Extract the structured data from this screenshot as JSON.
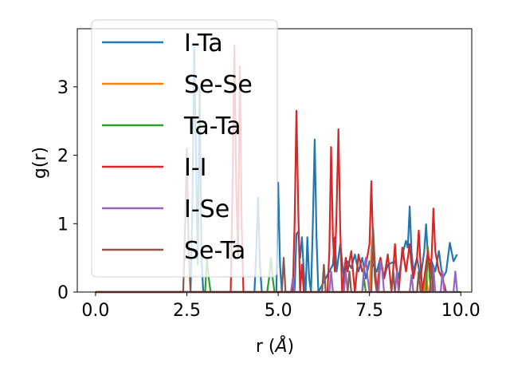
{
  "chart_data": {
    "type": "line",
    "xlabel": "r (",
    "xlabel_unit": "Å",
    "xlabel_close": ")",
    "ylabel": "g(r)",
    "xlim": [
      -0.5,
      10.3
    ],
    "ylim": [
      0,
      3.85
    ],
    "xticks": [
      0.0,
      2.5,
      5.0,
      7.5,
      10.0
    ],
    "xtick_labels": [
      "0.0",
      "2.5",
      "5.0",
      "7.5",
      "10.0"
    ],
    "yticks": [
      0,
      1,
      2,
      3
    ],
    "ytick_labels": [
      "0",
      "1",
      "2",
      "3"
    ],
    "grid": false,
    "legend_position": "top-left",
    "series": [
      {
        "name": "I-Ta",
        "color": "#1f77b4",
        "points": [
          [
            0,
            0
          ],
          [
            2.6,
            0
          ],
          [
            2.65,
            1.2
          ],
          [
            2.7,
            3.6
          ],
          [
            2.75,
            2.0
          ],
          [
            2.8,
            0.4
          ],
          [
            2.85,
            3.0
          ],
          [
            2.9,
            0.5
          ],
          [
            2.95,
            0
          ],
          [
            4.35,
            0
          ],
          [
            4.4,
            0.6
          ],
          [
            4.45,
            1.38
          ],
          [
            4.5,
            0.4
          ],
          [
            4.55,
            0
          ],
          [
            4.95,
            0
          ],
          [
            5.0,
            1.6
          ],
          [
            5.05,
            0.4
          ],
          [
            5.1,
            0
          ],
          [
            5.45,
            0
          ],
          [
            5.5,
            0.85
          ],
          [
            5.55,
            0.88
          ],
          [
            5.6,
            0.5
          ],
          [
            5.65,
            0.8
          ],
          [
            5.7,
            0.3
          ],
          [
            5.75,
            0
          ],
          [
            5.8,
            0.8
          ],
          [
            5.85,
            0.2
          ],
          [
            5.9,
            0
          ],
          [
            5.95,
            1.0
          ],
          [
            6.0,
            2.23
          ],
          [
            6.05,
            0.8
          ],
          [
            6.1,
            0
          ],
          [
            6.5,
            0.4
          ],
          [
            6.55,
            0.8
          ],
          [
            6.6,
            0.3
          ],
          [
            6.7,
            0.7
          ],
          [
            6.8,
            0.2
          ],
          [
            6.9,
            0.45
          ],
          [
            7.0,
            0.35
          ],
          [
            7.1,
            0.55
          ],
          [
            7.2,
            0.3
          ],
          [
            7.3,
            0.5
          ],
          [
            7.4,
            0.2
          ],
          [
            7.5,
            0.45
          ],
          [
            7.6,
            0.4
          ],
          [
            7.7,
            0.3
          ],
          [
            7.8,
            0.5
          ],
          [
            7.9,
            0.2
          ],
          [
            8.0,
            0.4
          ],
          [
            8.2,
            0.45
          ],
          [
            8.3,
            0.2
          ],
          [
            8.4,
            0.55
          ],
          [
            8.5,
            0.75
          ],
          [
            8.55,
            0.65
          ],
          [
            8.6,
            1.25
          ],
          [
            8.65,
            0.6
          ],
          [
            8.7,
            0.3
          ],
          [
            8.8,
            0.5
          ],
          [
            8.9,
            0.2
          ],
          [
            9.0,
            0.6
          ],
          [
            9.05,
            0.99
          ],
          [
            9.1,
            0.5
          ],
          [
            9.2,
            0.45
          ],
          [
            9.3,
            0.3
          ],
          [
            9.4,
            0.6
          ],
          [
            9.5,
            0.2
          ],
          [
            9.6,
            0.3
          ],
          [
            9.7,
            0.72
          ],
          [
            9.8,
            0.45
          ],
          [
            9.9,
            0.55
          ]
        ]
      },
      {
        "name": "Se-Se",
        "color": "#ff7f0e",
        "points": [
          [
            0,
            0
          ],
          [
            7.5,
            0
          ],
          [
            7.55,
            0.6
          ],
          [
            7.6,
            0.9
          ],
          [
            7.65,
            0.3
          ],
          [
            7.7,
            0
          ],
          [
            9.0,
            0
          ],
          [
            9.05,
            0.3
          ],
          [
            9.1,
            0
          ],
          [
            10,
            0
          ]
        ]
      },
      {
        "name": "Ta-Ta",
        "color": "#2ca02c",
        "points": [
          [
            0,
            0
          ],
          [
            3.0,
            0
          ],
          [
            3.05,
            0.5
          ],
          [
            3.1,
            0.2
          ],
          [
            3.15,
            0
          ],
          [
            4.7,
            0
          ],
          [
            4.75,
            0.2
          ],
          [
            4.8,
            0.5
          ],
          [
            4.85,
            0.2
          ],
          [
            4.9,
            0
          ],
          [
            7.3,
            0
          ],
          [
            7.35,
            0.2
          ],
          [
            7.4,
            0
          ],
          [
            8.1,
            0
          ],
          [
            8.15,
            0.3
          ],
          [
            8.2,
            0
          ],
          [
            8.8,
            0
          ],
          [
            8.85,
            0.3
          ],
          [
            8.9,
            0
          ],
          [
            9.05,
            0
          ],
          [
            9.1,
            0.65
          ],
          [
            9.15,
            0.2
          ],
          [
            9.2,
            0
          ],
          [
            10,
            0
          ]
        ]
      },
      {
        "name": "I-I",
        "color": "#d62728",
        "points": [
          [
            0,
            0
          ],
          [
            3.7,
            0
          ],
          [
            3.75,
            1.5
          ],
          [
            3.8,
            3.6
          ],
          [
            3.85,
            1.6
          ],
          [
            3.9,
            0.5
          ],
          [
            3.95,
            3.3
          ],
          [
            4.0,
            1.0
          ],
          [
            4.05,
            0
          ],
          [
            5.4,
            0
          ],
          [
            5.45,
            1.0
          ],
          [
            5.5,
            2.65
          ],
          [
            5.55,
            1.2
          ],
          [
            5.6,
            0
          ],
          [
            5.65,
            0.4
          ],
          [
            5.7,
            0
          ],
          [
            6.35,
            0
          ],
          [
            6.4,
            0.6
          ],
          [
            6.45,
            2.12
          ],
          [
            6.5,
            0.8
          ],
          [
            6.55,
            0.3
          ],
          [
            6.6,
            1.2
          ],
          [
            6.65,
            2.38
          ],
          [
            6.7,
            0.9
          ],
          [
            6.75,
            0
          ],
          [
            6.85,
            0.5
          ],
          [
            6.9,
            0.3
          ],
          [
            7.0,
            0.6
          ],
          [
            7.05,
            0.3
          ],
          [
            7.1,
            0
          ],
          [
            7.2,
            0.55
          ],
          [
            7.3,
            0.3
          ],
          [
            7.4,
            0.4
          ],
          [
            7.5,
            0.7
          ],
          [
            7.55,
            1.62
          ],
          [
            7.6,
            0.7
          ],
          [
            7.65,
            0.2
          ],
          [
            7.7,
            0
          ],
          [
            7.8,
            0.5
          ],
          [
            7.9,
            0.2
          ],
          [
            8.0,
            0.55
          ],
          [
            8.05,
            0.3
          ],
          [
            8.1,
            0
          ],
          [
            8.2,
            0.7
          ],
          [
            8.25,
            0.3
          ],
          [
            8.3,
            0
          ],
          [
            8.4,
            0.65
          ],
          [
            8.5,
            0.3
          ],
          [
            8.6,
            0.7
          ],
          [
            8.65,
            0.4
          ],
          [
            8.7,
            0.2
          ],
          [
            8.8,
            0.5
          ],
          [
            8.85,
            0.9
          ],
          [
            8.9,
            0.4
          ],
          [
            8.95,
            0
          ],
          [
            9.05,
            0.4
          ],
          [
            9.1,
            0.6
          ],
          [
            9.15,
            0.3
          ],
          [
            9.2,
            0.5
          ],
          [
            9.25,
            1.22
          ],
          [
            9.3,
            0.6
          ],
          [
            9.4,
            0.3
          ],
          [
            9.5,
            0.2
          ],
          [
            9.6,
            0
          ]
        ]
      },
      {
        "name": "I-Se",
        "color": "#9467bd",
        "points": [
          [
            0,
            0
          ],
          [
            5.35,
            0
          ],
          [
            5.4,
            0.2
          ],
          [
            5.45,
            0
          ],
          [
            6.4,
            0
          ],
          [
            6.45,
            0.3
          ],
          [
            6.5,
            0
          ],
          [
            6.8,
            0
          ],
          [
            6.85,
            0.3
          ],
          [
            6.9,
            0
          ],
          [
            7.3,
            0
          ],
          [
            7.35,
            0.35
          ],
          [
            7.4,
            0.5
          ],
          [
            7.45,
            0.2
          ],
          [
            7.5,
            0
          ],
          [
            7.75,
            0
          ],
          [
            7.8,
            0.45
          ],
          [
            7.85,
            0.3
          ],
          [
            7.9,
            0
          ],
          [
            8.2,
            0
          ],
          [
            8.25,
            0.3
          ],
          [
            8.3,
            0
          ],
          [
            8.6,
            0
          ],
          [
            8.65,
            0.25
          ],
          [
            8.7,
            0
          ],
          [
            9.2,
            0
          ],
          [
            9.25,
            0.35
          ],
          [
            9.3,
            0
          ],
          [
            9.45,
            0
          ],
          [
            9.5,
            0.3
          ],
          [
            9.55,
            0
          ],
          [
            9.8,
            0
          ],
          [
            9.85,
            0.3
          ],
          [
            9.9,
            0
          ]
        ]
      },
      {
        "name": "Se-Ta",
        "color": "#8c564b",
        "points": [
          [
            0,
            0
          ],
          [
            2.4,
            0
          ],
          [
            2.45,
            0.9
          ],
          [
            2.5,
            2.1
          ],
          [
            2.55,
            0.6
          ],
          [
            2.6,
            0
          ],
          [
            5.1,
            0
          ],
          [
            5.15,
            0.5
          ],
          [
            5.2,
            0
          ],
          [
            6.2,
            0
          ],
          [
            6.25,
            0.4
          ],
          [
            6.3,
            0
          ],
          [
            6.9,
            0
          ],
          [
            6.95,
            0.3
          ],
          [
            7.0,
            0
          ],
          [
            7.55,
            0
          ],
          [
            7.6,
            0.93
          ],
          [
            7.65,
            0.4
          ],
          [
            7.7,
            0
          ],
          [
            8.1,
            0
          ],
          [
            8.15,
            0.3
          ],
          [
            8.2,
            0
          ],
          [
            8.8,
            0
          ],
          [
            8.85,
            0.3
          ],
          [
            8.9,
            0
          ],
          [
            9.15,
            0
          ],
          [
            9.2,
            0.4
          ],
          [
            9.25,
            0
          ]
        ]
      }
    ]
  }
}
